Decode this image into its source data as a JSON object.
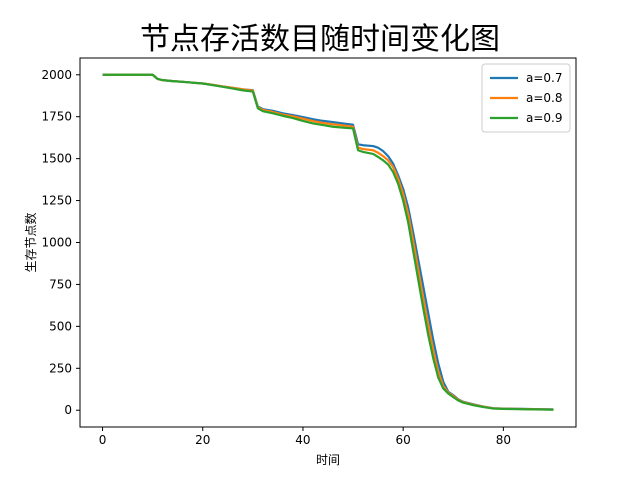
{
  "chart_data": {
    "type": "line",
    "title": "节点存活数目随时间变化图",
    "xlabel": "时间",
    "ylabel": "生存节点数",
    "xlim": [
      -4.5,
      94.5
    ],
    "ylim": [
      -100,
      2100
    ],
    "xticks": [
      0,
      20,
      40,
      60,
      80
    ],
    "yticks": [
      0,
      250,
      500,
      750,
      1000,
      1250,
      1500,
      1750,
      2000
    ],
    "grid": false,
    "legend_position": "top-right",
    "series": [
      {
        "name": "a=0.7",
        "color": "#1f77b4",
        "x": [
          0,
          10,
          11,
          12,
          14,
          16,
          18,
          20,
          22,
          24,
          26,
          28,
          30,
          31,
          32,
          34,
          36,
          38,
          40,
          42,
          44,
          46,
          48,
          50,
          51,
          52,
          54,
          55,
          56,
          57,
          58,
          59,
          60,
          61,
          62,
          63,
          64,
          65,
          66,
          67,
          68,
          69,
          70,
          71,
          72,
          74,
          76,
          78,
          80,
          82,
          84,
          86,
          88,
          90
        ],
        "y": [
          2000,
          2000,
          1975,
          1968,
          1962,
          1958,
          1953,
          1948,
          1940,
          1930,
          1922,
          1913,
          1908,
          1810,
          1795,
          1785,
          1770,
          1760,
          1748,
          1735,
          1725,
          1718,
          1710,
          1702,
          1585,
          1580,
          1575,
          1565,
          1545,
          1515,
          1470,
          1400,
          1320,
          1210,
          1060,
          900,
          740,
          580,
          420,
          280,
          170,
          110,
          90,
          65,
          50,
          35,
          22,
          12,
          10,
          9,
          8,
          7,
          6,
          5
        ]
      },
      {
        "name": "a=0.8",
        "color": "#ff7f0e",
        "x": [
          0,
          10,
          11,
          12,
          14,
          16,
          18,
          20,
          22,
          24,
          26,
          28,
          30,
          31,
          32,
          34,
          36,
          38,
          40,
          42,
          44,
          46,
          48,
          50,
          51,
          52,
          54,
          55,
          56,
          57,
          58,
          59,
          60,
          61,
          62,
          63,
          64,
          65,
          66,
          67,
          68,
          69,
          70,
          71,
          72,
          74,
          76,
          78,
          80,
          82,
          84,
          86,
          88,
          90
        ],
        "y": [
          2000,
          2000,
          1975,
          1968,
          1962,
          1958,
          1953,
          1948,
          1940,
          1930,
          1922,
          1913,
          1906,
          1805,
          1790,
          1778,
          1763,
          1752,
          1738,
          1724,
          1713,
          1705,
          1698,
          1690,
          1565,
          1557,
          1550,
          1535,
          1515,
          1490,
          1450,
          1380,
          1290,
          1170,
          1010,
          840,
          670,
          510,
          360,
          230,
          145,
          105,
          85,
          62,
          48,
          33,
          21,
          11,
          9,
          8,
          7,
          6,
          5,
          4
        ]
      },
      {
        "name": "a=0.9",
        "color": "#2ca02c",
        "x": [
          0,
          10,
          11,
          12,
          14,
          16,
          18,
          20,
          22,
          24,
          26,
          28,
          30,
          31,
          32,
          34,
          36,
          38,
          40,
          42,
          44,
          46,
          48,
          50,
          51,
          52,
          54,
          55,
          56,
          57,
          58,
          59,
          60,
          61,
          62,
          63,
          64,
          65,
          66,
          67,
          68,
          69,
          70,
          71,
          72,
          74,
          76,
          78,
          80,
          82,
          84,
          86,
          88,
          90
        ],
        "y": [
          2000,
          2000,
          1975,
          1968,
          1962,
          1958,
          1953,
          1948,
          1938,
          1928,
          1918,
          1907,
          1900,
          1800,
          1783,
          1770,
          1755,
          1742,
          1725,
          1710,
          1700,
          1690,
          1685,
          1680,
          1550,
          1540,
          1528,
          1510,
          1490,
          1465,
          1420,
          1350,
          1250,
          1120,
          950,
          780,
          610,
          450,
          310,
          195,
          130,
          100,
          78,
          58,
          45,
          30,
          19,
          10,
          8,
          7,
          6,
          5,
          4,
          3
        ]
      }
    ]
  }
}
